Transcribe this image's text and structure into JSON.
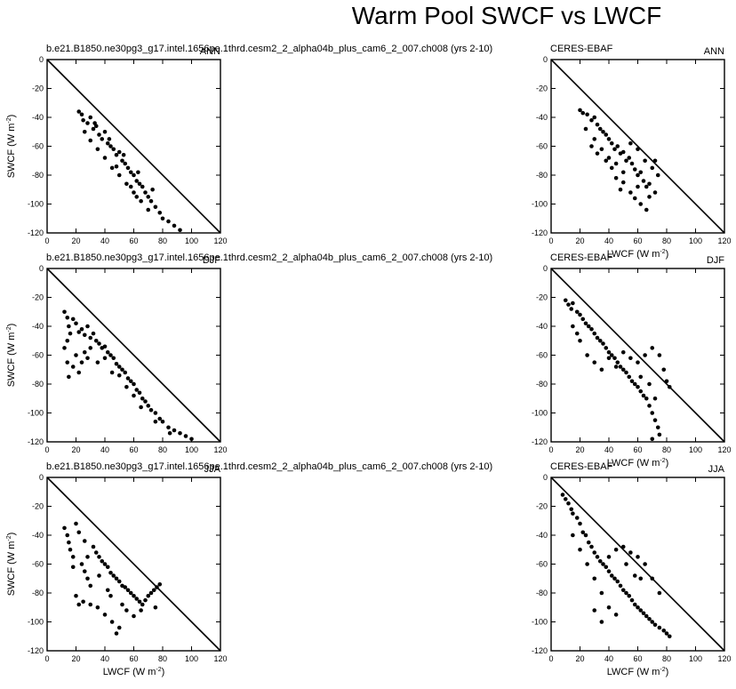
{
  "figure": {
    "title": "Warm Pool SWCF vs LWCF",
    "model_label": "b.e21.B1850.ne30pg3_g17.intel.1656pe.1thrd.cesm2_2_alpha04b_plus_cam6_2_007.ch008 (yrs 2-10)",
    "obs_label": "CERES-EBAF",
    "xlabel": "LWCF (W m",
    "ylabel": "SWCF (W m",
    "unit_exponent": "-2",
    "unit_close": ")",
    "xticks": [
      "0",
      "20",
      "40",
      "60",
      "80",
      "100",
      "120"
    ],
    "yticks": [
      "0",
      "-20",
      "-40",
      "-60",
      "-80",
      "-100",
      "-120"
    ]
  },
  "chart_data": [
    {
      "type": "scatter",
      "dataset": "model",
      "season": "ANN",
      "xlim": [
        0,
        120
      ],
      "ylim": [
        -120,
        0
      ],
      "reference_line": "y = -x",
      "points": [
        [
          22,
          -36
        ],
        [
          24,
          -38
        ],
        [
          25,
          -42
        ],
        [
          28,
          -44
        ],
        [
          30,
          -40
        ],
        [
          32,
          -48
        ],
        [
          34,
          -46
        ],
        [
          36,
          -52
        ],
        [
          38,
          -55
        ],
        [
          40,
          -50
        ],
        [
          42,
          -58
        ],
        [
          44,
          -60
        ],
        [
          46,
          -62
        ],
        [
          48,
          -66
        ],
        [
          50,
          -64
        ],
        [
          52,
          -70
        ],
        [
          54,
          -72
        ],
        [
          56,
          -75
        ],
        [
          58,
          -78
        ],
        [
          60,
          -80
        ],
        [
          62,
          -84
        ],
        [
          64,
          -86
        ],
        [
          66,
          -88
        ],
        [
          68,
          -92
        ],
        [
          70,
          -95
        ],
        [
          72,
          -98
        ],
        [
          75,
          -102
        ],
        [
          78,
          -106
        ],
        [
          80,
          -110
        ],
        [
          84,
          -112
        ],
        [
          88,
          -115
        ],
        [
          92,
          -118
        ],
        [
          35,
          -62
        ],
        [
          40,
          -68
        ],
        [
          45,
          -75
        ],
        [
          50,
          -80
        ],
        [
          55,
          -86
        ],
        [
          60,
          -92
        ],
        [
          65,
          -98
        ],
        [
          30,
          -56
        ],
        [
          26,
          -50
        ],
        [
          48,
          -74
        ],
        [
          58,
          -88
        ],
        [
          62,
          -95
        ],
        [
          70,
          -104
        ],
        [
          33,
          -44
        ],
        [
          43,
          -55
        ],
        [
          53,
          -66
        ],
        [
          63,
          -78
        ],
        [
          73,
          -90
        ]
      ]
    },
    {
      "type": "scatter",
      "dataset": "CERES-EBAF",
      "season": "ANN",
      "xlim": [
        0,
        120
      ],
      "ylim": [
        -120,
        0
      ],
      "reference_line": "y = -x",
      "points": [
        [
          20,
          -35
        ],
        [
          22,
          -37
        ],
        [
          25,
          -38
        ],
        [
          28,
          -42
        ],
        [
          30,
          -40
        ],
        [
          32,
          -45
        ],
        [
          34,
          -48
        ],
        [
          36,
          -50
        ],
        [
          38,
          -52
        ],
        [
          40,
          -55
        ],
        [
          42,
          -58
        ],
        [
          44,
          -62
        ],
        [
          46,
          -60
        ],
        [
          48,
          -65
        ],
        [
          50,
          -64
        ],
        [
          52,
          -70
        ],
        [
          54,
          -68
        ],
        [
          56,
          -72
        ],
        [
          58,
          -76
        ],
        [
          60,
          -80
        ],
        [
          62,
          -78
        ],
        [
          64,
          -84
        ],
        [
          66,
          -88
        ],
        [
          68,
          -86
        ],
        [
          70,
          -75
        ],
        [
          72,
          -70
        ],
        [
          74,
          -80
        ],
        [
          30,
          -55
        ],
        [
          35,
          -62
        ],
        [
          38,
          -70
        ],
        [
          42,
          -75
        ],
        [
          45,
          -82
        ],
        [
          48,
          -90
        ],
        [
          50,
          -85
        ],
        [
          55,
          -92
        ],
        [
          58,
          -96
        ],
        [
          62,
          -100
        ],
        [
          66,
          -104
        ],
        [
          24,
          -48
        ],
        [
          28,
          -60
        ],
        [
          32,
          -65
        ],
        [
          40,
          -68
        ],
        [
          45,
          -72
        ],
        [
          50,
          -78
        ],
        [
          55,
          -58
        ],
        [
          60,
          -62
        ],
        [
          65,
          -70
        ],
        [
          68,
          -95
        ],
        [
          72,
          -92
        ],
        [
          60,
          -88
        ]
      ]
    },
    {
      "type": "scatter",
      "dataset": "model",
      "season": "DJF",
      "xlim": [
        0,
        120
      ],
      "ylim": [
        -120,
        0
      ],
      "reference_line": "y = -x",
      "points": [
        [
          12,
          -30
        ],
        [
          14,
          -34
        ],
        [
          15,
          -40
        ],
        [
          18,
          -35
        ],
        [
          20,
          -38
        ],
        [
          22,
          -44
        ],
        [
          24,
          -42
        ],
        [
          26,
          -46
        ],
        [
          28,
          -40
        ],
        [
          30,
          -48
        ],
        [
          32,
          -45
        ],
        [
          34,
          -50
        ],
        [
          36,
          -52
        ],
        [
          38,
          -55
        ],
        [
          40,
          -54
        ],
        [
          42,
          -58
        ],
        [
          44,
          -60
        ],
        [
          46,
          -62
        ],
        [
          48,
          -66
        ],
        [
          50,
          -68
        ],
        [
          52,
          -70
        ],
        [
          54,
          -72
        ],
        [
          56,
          -76
        ],
        [
          58,
          -78
        ],
        [
          60,
          -80
        ],
        [
          62,
          -84
        ],
        [
          64,
          -86
        ],
        [
          66,
          -90
        ],
        [
          68,
          -92
        ],
        [
          70,
          -95
        ],
        [
          72,
          -98
        ],
        [
          75,
          -100
        ],
        [
          78,
          -104
        ],
        [
          80,
          -106
        ],
        [
          84,
          -110
        ],
        [
          88,
          -112
        ],
        [
          92,
          -114
        ],
        [
          96,
          -116
        ],
        [
          100,
          -118
        ],
        [
          12,
          -55
        ],
        [
          14,
          -65
        ],
        [
          15,
          -75
        ],
        [
          18,
          -68
        ],
        [
          20,
          -60
        ],
        [
          22,
          -72
        ],
        [
          24,
          -65
        ],
        [
          26,
          -58
        ],
        [
          28,
          -62
        ],
        [
          30,
          -55
        ],
        [
          14,
          -50
        ],
        [
          16,
          -45
        ],
        [
          35,
          -65
        ],
        [
          45,
          -72
        ],
        [
          55,
          -82
        ],
        [
          65,
          -96
        ],
        [
          75,
          -106
        ],
        [
          85,
          -114
        ],
        [
          40,
          -62
        ],
        [
          50,
          -74
        ],
        [
          60,
          -88
        ]
      ]
    },
    {
      "type": "scatter",
      "dataset": "CERES-EBAF",
      "season": "DJF",
      "xlim": [
        0,
        120
      ],
      "ylim": [
        -120,
        0
      ],
      "reference_line": "y = -x",
      "points": [
        [
          10,
          -22
        ],
        [
          12,
          -25
        ],
        [
          14,
          -28
        ],
        [
          15,
          -24
        ],
        [
          18,
          -30
        ],
        [
          20,
          -32
        ],
        [
          22,
          -35
        ],
        [
          24,
          -38
        ],
        [
          26,
          -40
        ],
        [
          28,
          -42
        ],
        [
          30,
          -45
        ],
        [
          32,
          -48
        ],
        [
          34,
          -50
        ],
        [
          36,
          -52
        ],
        [
          38,
          -55
        ],
        [
          40,
          -58
        ],
        [
          42,
          -60
        ],
        [
          44,
          -62
        ],
        [
          46,
          -65
        ],
        [
          48,
          -68
        ],
        [
          50,
          -70
        ],
        [
          52,
          -72
        ],
        [
          54,
          -75
        ],
        [
          56,
          -78
        ],
        [
          58,
          -80
        ],
        [
          60,
          -82
        ],
        [
          62,
          -85
        ],
        [
          64,
          -88
        ],
        [
          66,
          -90
        ],
        [
          68,
          -95
        ],
        [
          70,
          -100
        ],
        [
          72,
          -105
        ],
        [
          74,
          -110
        ],
        [
          75,
          -115
        ],
        [
          70,
          -118
        ],
        [
          20,
          -50
        ],
        [
          25,
          -60
        ],
        [
          30,
          -65
        ],
        [
          35,
          -70
        ],
        [
          40,
          -62
        ],
        [
          45,
          -68
        ],
        [
          50,
          -58
        ],
        [
          55,
          -62
        ],
        [
          60,
          -65
        ],
        [
          65,
          -60
        ],
        [
          70,
          -55
        ],
        [
          75,
          -60
        ],
        [
          78,
          -70
        ],
        [
          80,
          -78
        ],
        [
          82,
          -82
        ],
        [
          62,
          -75
        ],
        [
          68,
          -80
        ],
        [
          72,
          -90
        ],
        [
          15,
          -40
        ],
        [
          18,
          -45
        ]
      ]
    },
    {
      "type": "scatter",
      "dataset": "model",
      "season": "JJA",
      "xlim": [
        0,
        120
      ],
      "ylim": [
        -120,
        0
      ],
      "reference_line": "y = -x",
      "points": [
        [
          12,
          -35
        ],
        [
          14,
          -40
        ],
        [
          15,
          -45
        ],
        [
          16,
          -50
        ],
        [
          18,
          -55
        ],
        [
          20,
          -32
        ],
        [
          22,
          -38
        ],
        [
          24,
          -60
        ],
        [
          26,
          -65
        ],
        [
          28,
          -70
        ],
        [
          30,
          -75
        ],
        [
          20,
          -82
        ],
        [
          22,
          -88
        ],
        [
          25,
          -86
        ],
        [
          30,
          -88
        ],
        [
          35,
          -90
        ],
        [
          40,
          -95
        ],
        [
          45,
          -100
        ],
        [
          48,
          -108
        ],
        [
          50,
          -104
        ],
        [
          32,
          -48
        ],
        [
          34,
          -52
        ],
        [
          36,
          -55
        ],
        [
          38,
          -58
        ],
        [
          40,
          -60
        ],
        [
          42,
          -62
        ],
        [
          44,
          -66
        ],
        [
          46,
          -68
        ],
        [
          48,
          -70
        ],
        [
          50,
          -72
        ],
        [
          52,
          -75
        ],
        [
          54,
          -76
        ],
        [
          56,
          -78
        ],
        [
          58,
          -80
        ],
        [
          60,
          -82
        ],
        [
          62,
          -84
        ],
        [
          64,
          -86
        ],
        [
          66,
          -88
        ],
        [
          68,
          -85
        ],
        [
          70,
          -82
        ],
        [
          72,
          -80
        ],
        [
          74,
          -78
        ],
        [
          76,
          -76
        ],
        [
          78,
          -74
        ],
        [
          65,
          -92
        ],
        [
          60,
          -96
        ],
        [
          55,
          -92
        ],
        [
          75,
          -90
        ],
        [
          36,
          -68
        ],
        [
          42,
          -78
        ],
        [
          26,
          -44
        ],
        [
          18,
          -62
        ],
        [
          28,
          -55
        ],
        [
          44,
          -82
        ],
        [
          52,
          -88
        ]
      ]
    },
    {
      "type": "scatter",
      "dataset": "CERES-EBAF",
      "season": "JJA",
      "xlim": [
        0,
        120
      ],
      "ylim": [
        -120,
        0
      ],
      "reference_line": "y = -x",
      "points": [
        [
          8,
          -12
        ],
        [
          10,
          -15
        ],
        [
          12,
          -18
        ],
        [
          14,
          -22
        ],
        [
          15,
          -25
        ],
        [
          18,
          -28
        ],
        [
          20,
          -32
        ],
        [
          22,
          -38
        ],
        [
          24,
          -40
        ],
        [
          26,
          -45
        ],
        [
          28,
          -48
        ],
        [
          30,
          -52
        ],
        [
          32,
          -55
        ],
        [
          34,
          -58
        ],
        [
          36,
          -60
        ],
        [
          38,
          -62
        ],
        [
          40,
          -65
        ],
        [
          42,
          -68
        ],
        [
          44,
          -70
        ],
        [
          46,
          -72
        ],
        [
          48,
          -75
        ],
        [
          50,
          -78
        ],
        [
          52,
          -80
        ],
        [
          54,
          -82
        ],
        [
          56,
          -85
        ],
        [
          58,
          -88
        ],
        [
          60,
          -90
        ],
        [
          62,
          -92
        ],
        [
          64,
          -94
        ],
        [
          66,
          -96
        ],
        [
          68,
          -98
        ],
        [
          70,
          -100
        ],
        [
          72,
          -102
        ],
        [
          75,
          -104
        ],
        [
          78,
          -106
        ],
        [
          80,
          -108
        ],
        [
          82,
          -110
        ],
        [
          15,
          -40
        ],
        [
          20,
          -50
        ],
        [
          25,
          -60
        ],
        [
          30,
          -70
        ],
        [
          35,
          -80
        ],
        [
          40,
          -90
        ],
        [
          45,
          -95
        ],
        [
          40,
          -55
        ],
        [
          45,
          -50
        ],
        [
          50,
          -48
        ],
        [
          55,
          -52
        ],
        [
          60,
          -55
        ],
        [
          65,
          -60
        ],
        [
          70,
          -70
        ],
        [
          75,
          -80
        ],
        [
          30,
          -92
        ],
        [
          35,
          -100
        ],
        [
          62,
          -70
        ],
        [
          52,
          -60
        ],
        [
          58,
          -68
        ]
      ]
    }
  ]
}
